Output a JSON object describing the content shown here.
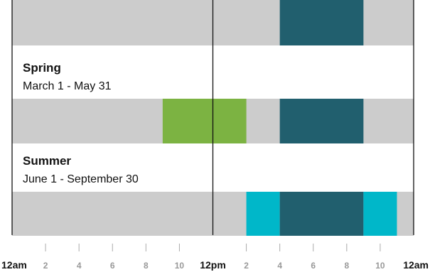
{
  "chart_data": {
    "type": "timeline",
    "x_range": [
      0,
      24
    ],
    "base_color": "#cccccc",
    "tick_labels": [
      {
        "hour": 0,
        "label": "12am",
        "major": true
      },
      {
        "hour": 2,
        "label": "2",
        "major": false
      },
      {
        "hour": 4,
        "label": "4",
        "major": false
      },
      {
        "hour": 6,
        "label": "6",
        "major": false
      },
      {
        "hour": 8,
        "label": "8",
        "major": false
      },
      {
        "hour": 10,
        "label": "10",
        "major": false
      },
      {
        "hour": 12,
        "label": "12pm",
        "major": true
      },
      {
        "hour": 14,
        "label": "2",
        "major": false
      },
      {
        "hour": 16,
        "label": "4",
        "major": false
      },
      {
        "hour": 18,
        "label": "6",
        "major": false
      },
      {
        "hour": 20,
        "label": "8",
        "major": false
      },
      {
        "hour": 22,
        "label": "10",
        "major": false
      },
      {
        "hour": 24,
        "label": "12am",
        "major": true
      }
    ],
    "rows": [
      {
        "name": "",
        "range": "",
        "segments": [
          {
            "start": 16,
            "end": 21,
            "color": "#215f6e"
          }
        ]
      },
      {
        "name": "Spring",
        "range": "March 1 - May 31",
        "segments": [
          {
            "start": 9,
            "end": 14,
            "color": "#7cb342"
          },
          {
            "start": 16,
            "end": 21,
            "color": "#215f6e"
          }
        ]
      },
      {
        "name": "Summer",
        "range": "June 1 - September 30",
        "segments": [
          {
            "start": 14,
            "end": 16,
            "color": "#00b7c9"
          },
          {
            "start": 16,
            "end": 21,
            "color": "#215f6e"
          },
          {
            "start": 21,
            "end": 23,
            "color": "#00b7c9"
          }
        ]
      }
    ]
  }
}
